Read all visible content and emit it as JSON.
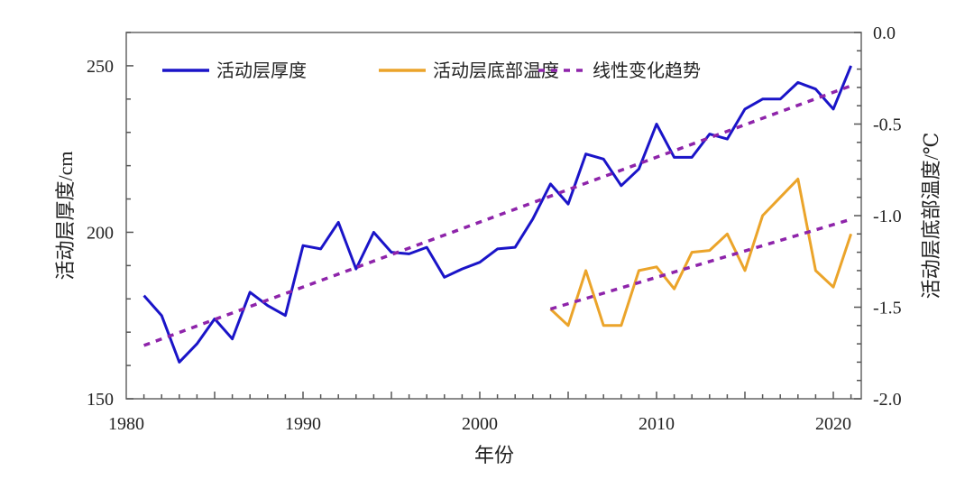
{
  "chart_data": {
    "type": "line",
    "xlabel": "年份",
    "ylabel": "活动层厚度/cm",
    "ylabel_right": "活动层底部温度/℃",
    "xlim": [
      1980,
      2022
    ],
    "ylim": [
      150,
      260
    ],
    "ylim_right": [
      -2.0,
      0.0
    ],
    "xticks": [
      "1980",
      "1990",
      "2000",
      "2010",
      "2020"
    ],
    "yticks": [
      "150",
      "200",
      "250"
    ],
    "yticks_right": [
      "0.0",
      "-0.5",
      "-1.0",
      "-1.5",
      "-2.0"
    ],
    "legend_placement": "top",
    "series": [
      {
        "name": "活动层厚度",
        "axis": "left",
        "color": "#1a14c8",
        "style": "solid",
        "x": [
          1981,
          1982,
          1983,
          1984,
          1985,
          1986,
          1987,
          1988,
          1989,
          1990,
          1991,
          1992,
          1993,
          1994,
          1995,
          1996,
          1997,
          1998,
          1999,
          2000,
          2001,
          2002,
          2003,
          2004,
          2005,
          2006,
          2007,
          2008,
          2009,
          2010,
          2011,
          2012,
          2013,
          2014,
          2015,
          2016,
          2017,
          2018,
          2019,
          2020,
          2021
        ],
        "y": [
          181,
          175,
          161,
          166.5,
          174,
          168,
          182,
          178,
          175,
          196,
          195,
          203,
          189,
          200,
          194,
          193.5,
          195.5,
          186.5,
          189,
          191,
          195,
          195.5,
          204,
          214.5,
          208.5,
          223.5,
          222,
          214,
          219,
          232.5,
          222.5,
          222.5,
          229.5,
          228,
          237,
          240,
          240,
          245,
          243,
          237,
          250
        ]
      },
      {
        "name": "活动层底部温度",
        "axis": "right",
        "color": "#eba42a",
        "style": "solid",
        "x": [
          2004,
          2005,
          2006,
          2007,
          2008,
          2009,
          2010,
          2011,
          2012,
          2013,
          2014,
          2015,
          2016,
          2017,
          2018,
          2019,
          2020,
          2021
        ],
        "y": [
          -1.51,
          -1.6,
          -1.3,
          -1.6,
          -1.6,
          -1.3,
          -1.28,
          -1.4,
          -1.2,
          -1.19,
          -1.1,
          -1.3,
          -1.0,
          -0.9,
          -0.8,
          -1.3,
          -1.39,
          -1.1
        ]
      },
      {
        "name": "线性变化趋势",
        "axis": "left",
        "color": "#8e24aa",
        "style": "dotted",
        "x": [
          1981,
          2021
        ],
        "y": [
          166,
          244
        ]
      },
      {
        "axis": "right",
        "color": "#8e24aa",
        "style": "dotted",
        "x": [
          2004,
          2021
        ],
        "y": [
          -1.51,
          -1.02
        ]
      }
    ]
  }
}
